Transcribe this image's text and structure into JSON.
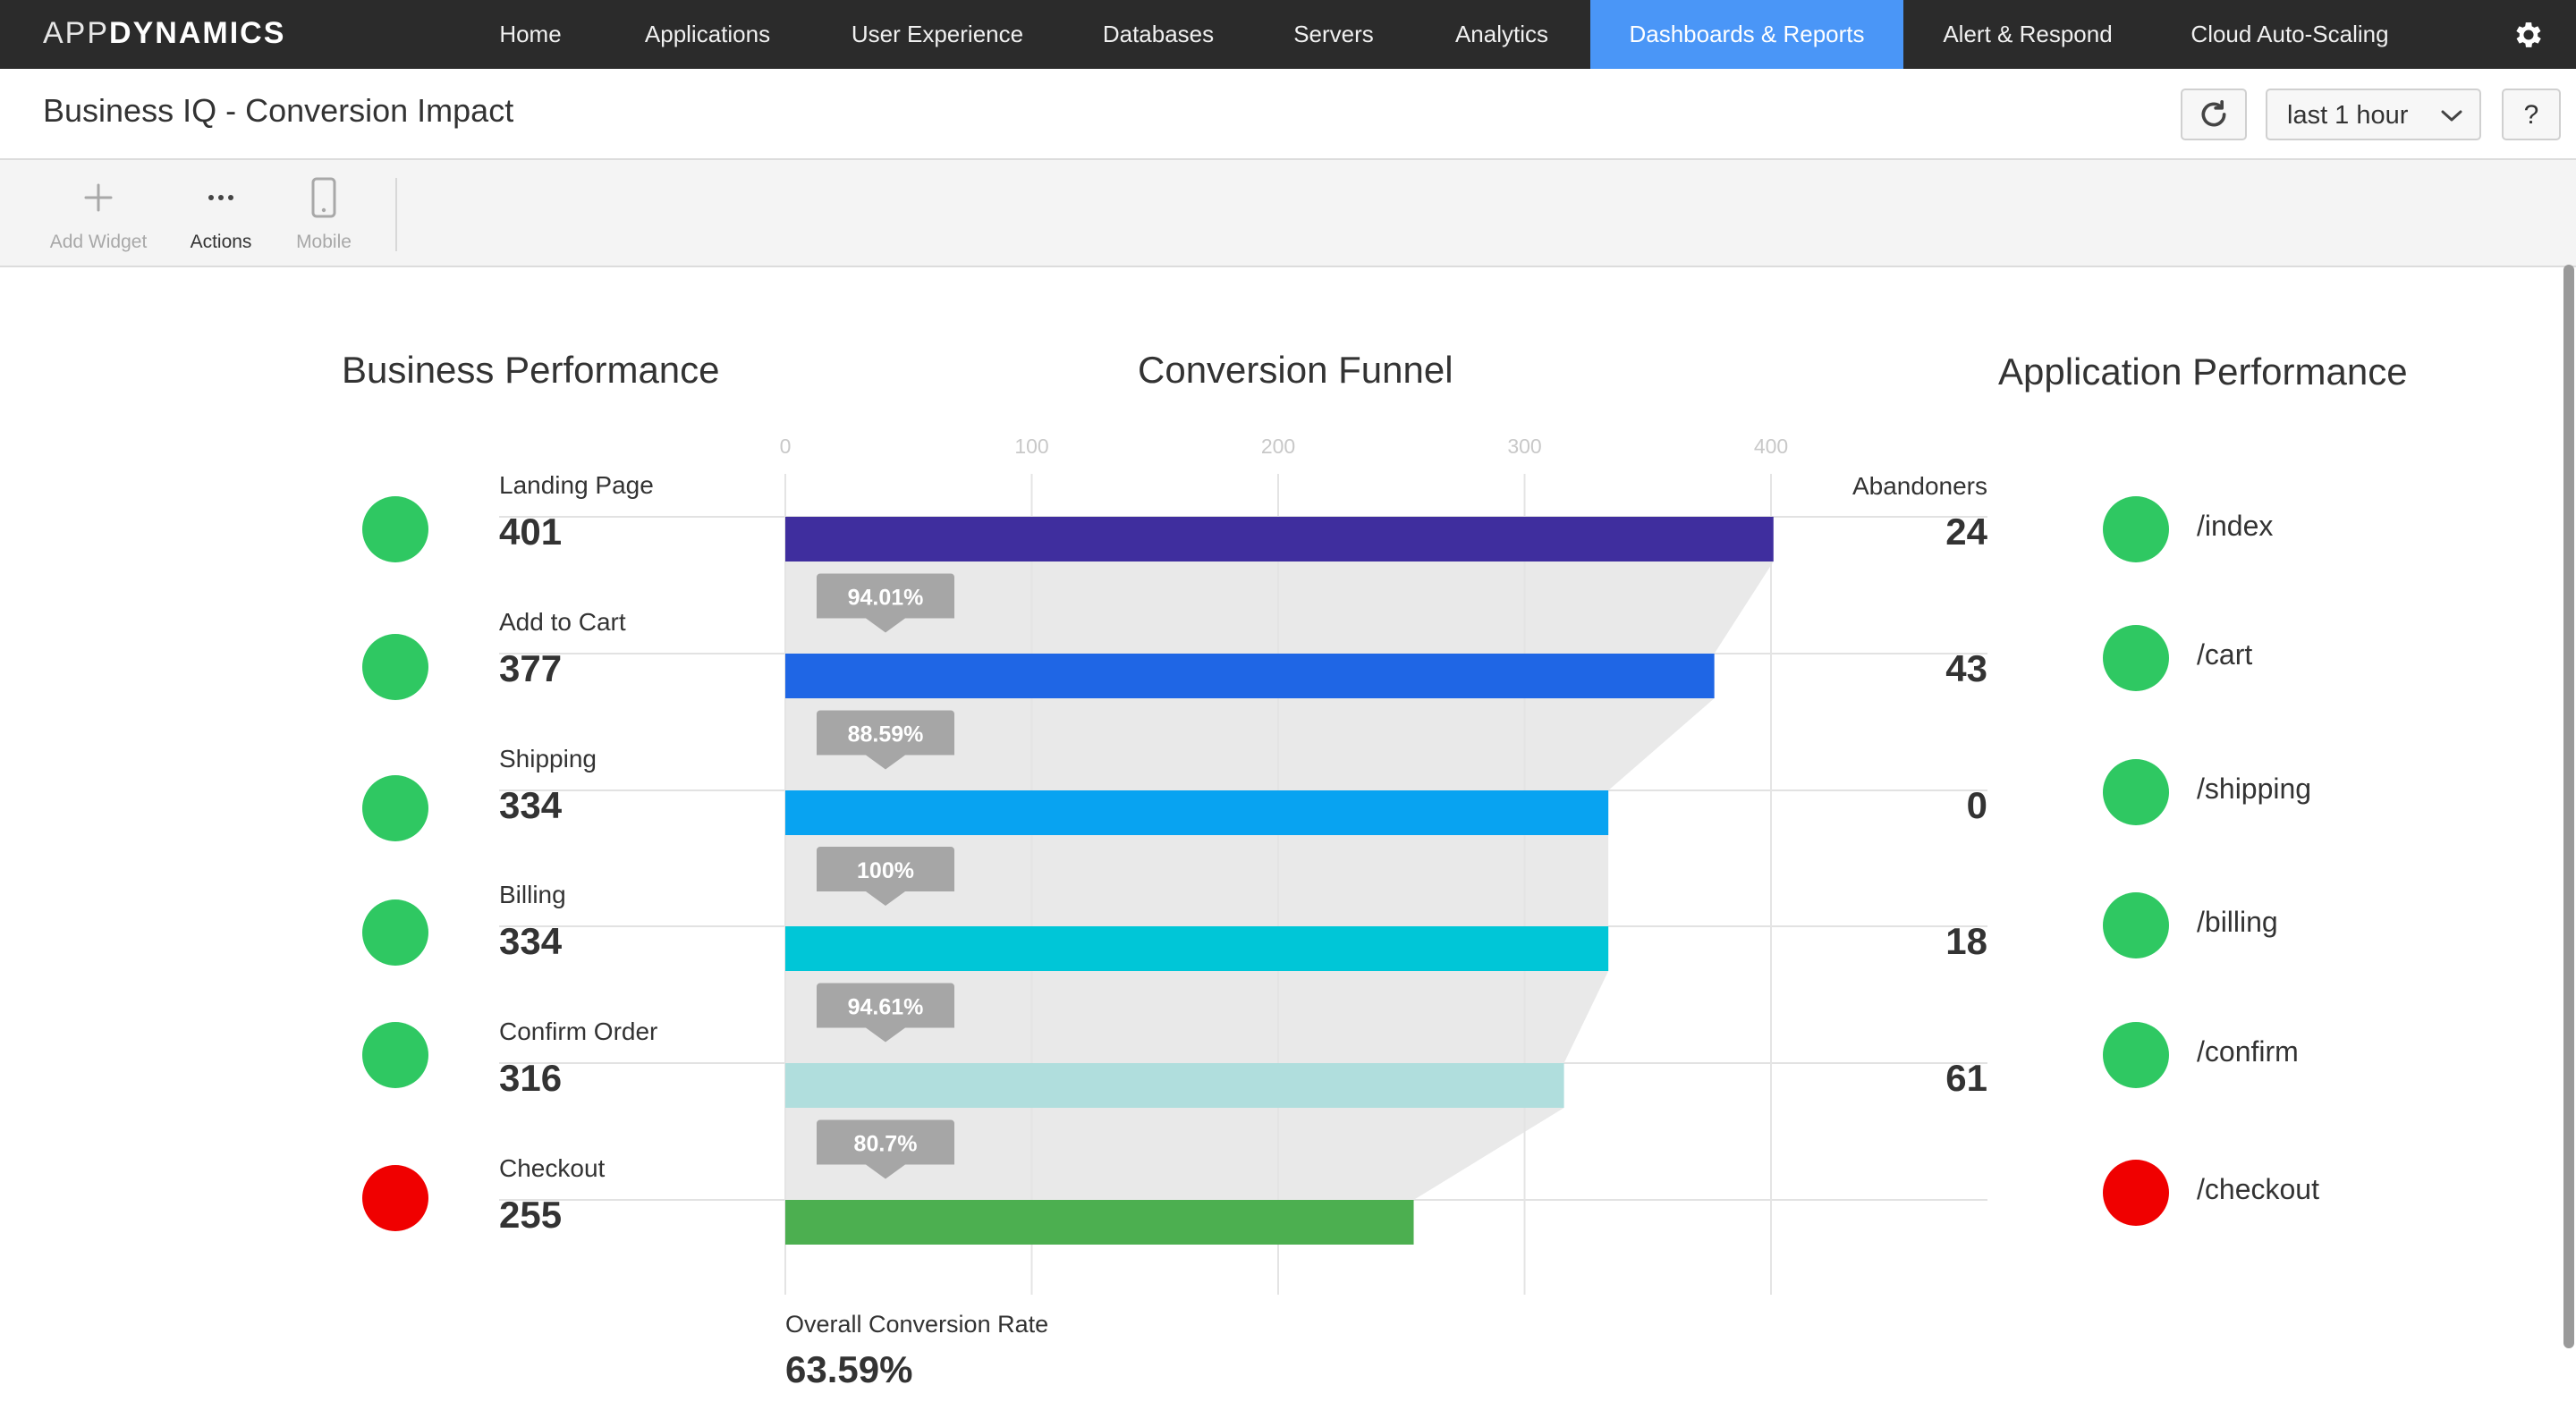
{
  "brand": {
    "prefix": "APP",
    "suffix": "DYNAMICS"
  },
  "nav": {
    "items": [
      {
        "label": "Home"
      },
      {
        "label": "Applications"
      },
      {
        "label": "User Experience"
      },
      {
        "label": "Databases"
      },
      {
        "label": "Servers"
      },
      {
        "label": "Analytics"
      },
      {
        "label": "Dashboards & Reports",
        "active": true
      },
      {
        "label": "Alert & Respond"
      },
      {
        "label": "Cloud Auto-Scaling"
      }
    ]
  },
  "titlebar": {
    "title": "Business IQ - Conversion Impact",
    "time_range": "last 1 hour",
    "help_label": "?"
  },
  "toolbar": {
    "add_widget": "Add Widget",
    "actions": "Actions",
    "mobile": "Mobile"
  },
  "sections": {
    "business": "Business Performance",
    "funnel": "Conversion Funnel",
    "application": "Application Performance"
  },
  "colors": {
    "green": "#2fc862",
    "red": "#f00000",
    "nav_active": "#4a96f7"
  },
  "steps": [
    {
      "label": "Landing Page",
      "value": "401",
      "status": "green"
    },
    {
      "label": "Add to Cart",
      "value": "377",
      "status": "green"
    },
    {
      "label": "Shipping",
      "value": "334",
      "status": "green"
    },
    {
      "label": "Billing",
      "value": "334",
      "status": "green"
    },
    {
      "label": "Confirm Order",
      "value": "316",
      "status": "green"
    },
    {
      "label": "Checkout",
      "value": "255",
      "status": "red"
    }
  ],
  "abandoners": {
    "label": "Abandoners",
    "values": [
      "24",
      "43",
      "0",
      "18",
      "61"
    ]
  },
  "app_performance": [
    {
      "label": "/index",
      "status": "green"
    },
    {
      "label": "/cart",
      "status": "green"
    },
    {
      "label": "/shipping",
      "status": "green"
    },
    {
      "label": "/billing",
      "status": "green"
    },
    {
      "label": "/confirm",
      "status": "green"
    },
    {
      "label": "/checkout",
      "status": "red"
    }
  ],
  "overall": {
    "label": "Overall Conversion Rate",
    "value": "63.59%"
  },
  "chart_data": {
    "type": "bar",
    "title": "Conversion Funnel",
    "categories": [
      "Landing Page",
      "Add to Cart",
      "Shipping",
      "Billing",
      "Confirm Order",
      "Checkout"
    ],
    "values": [
      401,
      377,
      334,
      334,
      316,
      255
    ],
    "bar_colors": [
      "#3f2e9e",
      "#1f66e5",
      "#08a3f1",
      "#00c6d7",
      "#b0dedd",
      "#4caf50"
    ],
    "conversion_rates": [
      "94.01%",
      "88.59%",
      "100%",
      "94.61%",
      "80.7%"
    ],
    "xlim": [
      0,
      400
    ],
    "xticks": [
      "0",
      "100",
      "200",
      "300",
      "400"
    ],
    "grid": true
  }
}
